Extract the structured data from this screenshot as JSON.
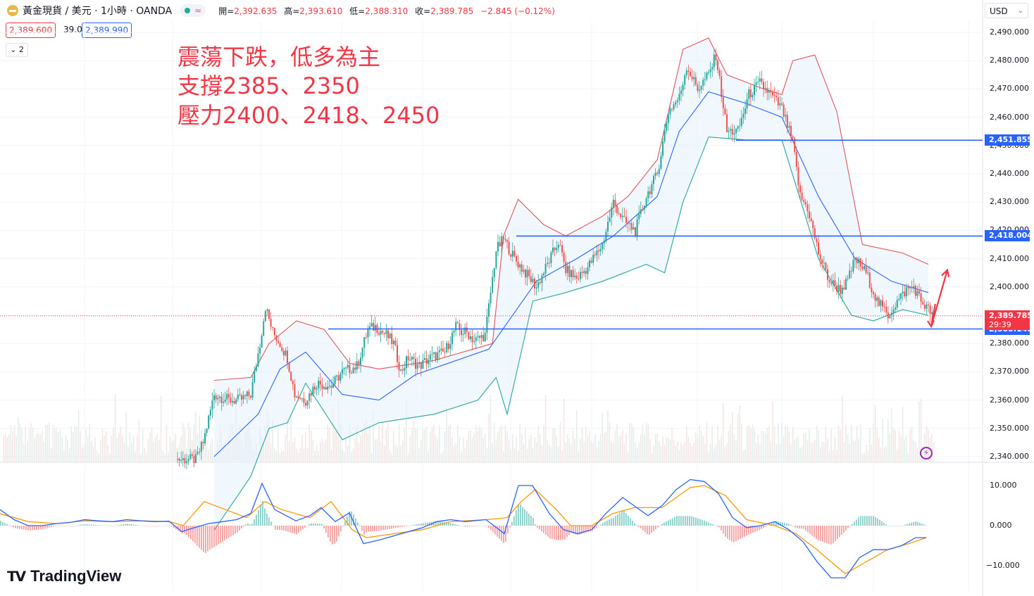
{
  "header": {
    "symbol_title": "黃金現貨 / 美元 · 1小時 · OANDA",
    "approx_glyph": "≈",
    "ohlc": [
      {
        "k": "開=",
        "v": "2,392.635"
      },
      {
        "k": "高=",
        "v": "2,393.610"
      },
      {
        "k": "低=",
        "v": "2,388.310"
      },
      {
        "k": "收=",
        "v": "2,389.785"
      },
      {
        "k": "",
        "v": "−2.845 (−0.12%)"
      }
    ]
  },
  "trade": {
    "sell": "2,389.600",
    "spread": "39.0",
    "buy": "2,389.990"
  },
  "indicator_toggle": "2",
  "currency_select": "USD",
  "annotation": {
    "line1": "震蕩下跌，低多為主",
    "line2": "支撐2385、2350",
    "line3": "壓力2400、2418、2450"
  },
  "brand": {
    "name": "TradingView"
  },
  "colors": {
    "up": "#26a69a",
    "down": "#ef5350",
    "level": "#2962ff",
    "bb_upper": "#e0555d",
    "bb_lower": "#26a69a",
    "bb_mid": "#2962ff",
    "macd": "#2962ff",
    "signal": "#ff9800",
    "annotation": "#f23645"
  },
  "chart_data": {
    "type": "candlestick",
    "symbol": "黃金現貨 / 美元",
    "timeframe": "1小時",
    "price_axis": {
      "ylim": [
        2340,
        2490
      ],
      "ticks": [
        "2,490.000",
        "2,480.000",
        "2,470.000",
        "2,460.000",
        "2,450.000",
        "2,440.000",
        "2,430.000",
        "2,420.000",
        "2,410.000",
        "2,400.000",
        "2,390.000",
        "2,380.000",
        "2,370.000",
        "2,360.000",
        "2,350.000",
        "2,340.000"
      ]
    },
    "horizontal_levels": [
      {
        "label": "2,451.855",
        "value": 2451.855
      },
      {
        "label": "2,418.004",
        "value": 2418.004
      },
      {
        "label": "2,385.148",
        "value": 2385.148
      }
    ],
    "last_price": {
      "label": "2,389.785",
      "value": 2389.785,
      "countdown": "29:39"
    },
    "price_path": [
      [
        0,
        2339
      ],
      [
        10,
        2339
      ],
      [
        14,
        2345
      ],
      [
        20,
        2362
      ],
      [
        28,
        2360
      ],
      [
        34,
        2360
      ],
      [
        40,
        2362
      ],
      [
        45,
        2380
      ],
      [
        48,
        2393
      ],
      [
        52,
        2384
      ],
      [
        56,
        2380
      ],
      [
        60,
        2375
      ],
      [
        64,
        2362
      ],
      [
        70,
        2360
      ],
      [
        76,
        2366
      ],
      [
        84,
        2365
      ],
      [
        90,
        2370
      ],
      [
        98,
        2372
      ],
      [
        104,
        2385
      ],
      [
        108,
        2386
      ],
      [
        114,
        2383
      ],
      [
        118,
        2380
      ],
      [
        122,
        2370
      ],
      [
        126,
        2375
      ],
      [
        132,
        2372
      ],
      [
        138,
        2375
      ],
      [
        146,
        2377
      ],
      [
        152,
        2386
      ],
      [
        155,
        2384
      ],
      [
        158,
        2384
      ],
      [
        162,
        2381
      ],
      [
        168,
        2383
      ],
      [
        174,
        2413
      ],
      [
        178,
        2417
      ],
      [
        184,
        2410
      ],
      [
        190,
        2405
      ],
      [
        196,
        2400
      ],
      [
        202,
        2408
      ],
      [
        208,
        2416
      ],
      [
        212,
        2406
      ],
      [
        218,
        2403
      ],
      [
        224,
        2407
      ],
      [
        232,
        2415
      ],
      [
        238,
        2430
      ],
      [
        244,
        2423
      ],
      [
        250,
        2420
      ],
      [
        256,
        2432
      ],
      [
        262,
        2440
      ],
      [
        268,
        2462
      ],
      [
        274,
        2467
      ],
      [
        278,
        2478
      ],
      [
        284,
        2470
      ],
      [
        290,
        2475
      ],
      [
        294,
        2482
      ],
      [
        300,
        2455
      ],
      [
        306,
        2455
      ],
      [
        312,
        2468
      ],
      [
        318,
        2472
      ],
      [
        324,
        2468
      ],
      [
        330,
        2463
      ],
      [
        336,
        2451
      ],
      [
        340,
        2432
      ],
      [
        344,
        2428
      ],
      [
        350,
        2412
      ],
      [
        356,
        2402
      ],
      [
        362,
        2399
      ],
      [
        366,
        2402
      ],
      [
        370,
        2410
      ],
      [
        376,
        2405
      ],
      [
        382,
        2395
      ],
      [
        388,
        2390
      ],
      [
        392,
        2394
      ],
      [
        398,
        2399
      ],
      [
        402,
        2400
      ],
      [
        406,
        2395
      ],
      [
        410,
        2392
      ],
      [
        413,
        2389.8
      ]
    ],
    "bollinger": {
      "period_bars": "approx",
      "upper": [
        [
          20,
          2367
        ],
        [
          40,
          2368
        ],
        [
          50,
          2380
        ],
        [
          65,
          2388
        ],
        [
          80,
          2385
        ],
        [
          94,
          2373
        ],
        [
          110,
          2371
        ],
        [
          140,
          2374
        ],
        [
          172,
          2380
        ],
        [
          178,
          2418
        ],
        [
          186,
          2431
        ],
        [
          200,
          2422
        ],
        [
          212,
          2418
        ],
        [
          232,
          2425
        ],
        [
          246,
          2432
        ],
        [
          262,
          2445
        ],
        [
          276,
          2484
        ],
        [
          290,
          2488
        ],
        [
          300,
          2475
        ],
        [
          320,
          2470
        ],
        [
          330,
          2468
        ],
        [
          336,
          2480
        ],
        [
          348,
          2482
        ],
        [
          360,
          2462
        ],
        [
          374,
          2415
        ],
        [
          396,
          2412
        ],
        [
          410,
          2408
        ]
      ],
      "middle": [
        [
          20,
          2340
        ],
        [
          44,
          2355
        ],
        [
          56,
          2371
        ],
        [
          70,
          2377
        ],
        [
          90,
          2362
        ],
        [
          110,
          2360
        ],
        [
          130,
          2369
        ],
        [
          170,
          2378
        ],
        [
          196,
          2402
        ],
        [
          218,
          2410
        ],
        [
          238,
          2418
        ],
        [
          262,
          2432
        ],
        [
          274,
          2455
        ],
        [
          290,
          2469
        ],
        [
          310,
          2465
        ],
        [
          330,
          2460
        ],
        [
          350,
          2432
        ],
        [
          370,
          2410
        ],
        [
          390,
          2402
        ],
        [
          410,
          2398
        ]
      ],
      "lower": [
        [
          20,
          2314
        ],
        [
          40,
          2333
        ],
        [
          50,
          2350
        ],
        [
          60,
          2352
        ],
        [
          70,
          2366
        ],
        [
          90,
          2346
        ],
        [
          110,
          2352
        ],
        [
          140,
          2355
        ],
        [
          164,
          2360
        ],
        [
          174,
          2368
        ],
        [
          180,
          2355
        ],
        [
          194,
          2395
        ],
        [
          212,
          2398
        ],
        [
          232,
          2402
        ],
        [
          244,
          2405
        ],
        [
          256,
          2408
        ],
        [
          266,
          2405
        ],
        [
          276,
          2430
        ],
        [
          290,
          2453
        ],
        [
          310,
          2452
        ],
        [
          330,
          2452
        ],
        [
          350,
          2410
        ],
        [
          368,
          2390
        ],
        [
          380,
          2388
        ],
        [
          396,
          2392
        ],
        [
          410,
          2390
        ]
      ]
    },
    "macd_axis": {
      "ylim": [
        -13,
        13
      ],
      "ticks": [
        "10.000",
        "0.000",
        "−10.000"
      ]
    },
    "macd": [
      [
        0,
        4
      ],
      [
        20,
        1.5
      ],
      [
        40,
        0
      ],
      [
        60,
        0
      ],
      [
        80,
        0.5
      ],
      [
        100,
        0.8
      ],
      [
        120,
        1.5
      ],
      [
        140,
        1.2
      ],
      [
        160,
        1.0
      ],
      [
        180,
        1.5
      ],
      [
        200,
        1.2
      ],
      [
        220,
        1.0
      ],
      [
        240,
        1.1
      ],
      [
        258,
        -1.5
      ],
      [
        276,
        -0.5
      ],
      [
        296,
        0.5
      ],
      [
        316,
        1.0
      ],
      [
        336,
        1.5
      ],
      [
        356,
        3
      ],
      [
        372,
        10.5
      ],
      [
        390,
        4
      ],
      [
        420,
        1.2
      ],
      [
        440,
        2.5
      ],
      [
        456,
        4.5
      ],
      [
        476,
        1.0
      ],
      [
        496,
        3.2
      ],
      [
        516,
        -4.5
      ],
      [
        540,
        -3.5
      ],
      [
        560,
        -2.5
      ],
      [
        580,
        -1.5
      ],
      [
        600,
        -0.5
      ],
      [
        620,
        1.0
      ],
      [
        640,
        1.5
      ],
      [
        660,
        1.0
      ],
      [
        690,
        1.5
      ],
      [
        716,
        -2
      ],
      [
        736,
        10
      ],
      [
        756,
        10
      ],
      [
        780,
        3
      ],
      [
        800,
        -1
      ],
      [
        820,
        -2
      ],
      [
        840,
        -1
      ],
      [
        860,
        3
      ],
      [
        884,
        7
      ],
      [
        900,
        5
      ],
      [
        920,
        2.5
      ],
      [
        940,
        5
      ],
      [
        960,
        9
      ],
      [
        980,
        11.5
      ],
      [
        1000,
        11
      ],
      [
        1020,
        8
      ],
      [
        1040,
        2
      ],
      [
        1060,
        -0.5
      ],
      [
        1080,
        0
      ],
      [
        1100,
        1
      ],
      [
        1120,
        -1
      ],
      [
        1140,
        -4
      ],
      [
        1160,
        -9
      ],
      [
        1180,
        -13
      ],
      [
        1200,
        -13
      ],
      [
        1220,
        -8
      ],
      [
        1240,
        -6
      ],
      [
        1260,
        -6
      ],
      [
        1280,
        -5
      ],
      [
        1300,
        -3
      ],
      [
        1315,
        -3
      ]
    ],
    "signal": [
      [
        0,
        3
      ],
      [
        40,
        1
      ],
      [
        80,
        0.5
      ],
      [
        120,
        1.2
      ],
      [
        160,
        1.0
      ],
      [
        200,
        1.2
      ],
      [
        240,
        1.0
      ],
      [
        260,
        0
      ],
      [
        290,
        6
      ],
      [
        320,
        4
      ],
      [
        350,
        2
      ],
      [
        376,
        6
      ],
      [
        400,
        4
      ],
      [
        440,
        2
      ],
      [
        470,
        6
      ],
      [
        500,
        -1
      ],
      [
        520,
        -3
      ],
      [
        560,
        -2
      ],
      [
        600,
        -1
      ],
      [
        640,
        1
      ],
      [
        690,
        1.5
      ],
      [
        720,
        2
      ],
      [
        740,
        6
      ],
      [
        760,
        9
      ],
      [
        790,
        4
      ],
      [
        810,
        0
      ],
      [
        840,
        0
      ],
      [
        870,
        3
      ],
      [
        900,
        4.5
      ],
      [
        940,
        4.5
      ],
      [
        980,
        9.5
      ],
      [
        1000,
        10
      ],
      [
        1030,
        7.5
      ],
      [
        1060,
        1.5
      ],
      [
        1100,
        0
      ],
      [
        1130,
        -2
      ],
      [
        1160,
        -6
      ],
      [
        1200,
        -12
      ],
      [
        1230,
        -9
      ],
      [
        1260,
        -6
      ],
      [
        1290,
        -4.5
      ],
      [
        1315,
        -3
      ]
    ],
    "annotation_arrows": [
      {
        "from": [
          2392,
          2394
        ],
        "to": [
          2386,
          2386
        ]
      },
      {
        "from": [
          2386,
          2386
        ],
        "to": [
          2406,
          2406
        ]
      }
    ]
  }
}
